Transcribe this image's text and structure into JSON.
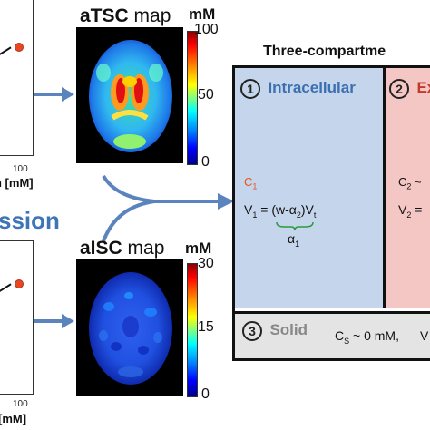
{
  "left_plots": {
    "top": {
      "tick_x": "100",
      "xlabel": "n [mM]"
    },
    "bottom": {
      "tick_x": "100",
      "xlabel": "[mM]"
    },
    "section_label": "ssion"
  },
  "atsc": {
    "title_bold": "aTSC",
    "title_rest": " map",
    "unit": "mM",
    "ticks": [
      "100",
      "50",
      "0"
    ]
  },
  "aisc": {
    "title_bold": "aISC",
    "title_rest": " map",
    "unit": "mM",
    "ticks": [
      "30",
      "15",
      "0"
    ]
  },
  "model": {
    "title": "Three-compartme",
    "intracellular": {
      "number": "1",
      "name": "Intracellular",
      "c_label": "C",
      "c_sub": "1",
      "eq_prefix": "V",
      "eq_sub": "1",
      "eq_body": " = (w-α",
      "eq_body_sub": "2",
      "eq_tail": ")V",
      "eq_tail_sub": "t",
      "alpha": "α",
      "alpha_sub": "1"
    },
    "extracellular": {
      "number": "2",
      "name": "Ex",
      "c_label": "C",
      "c_sub": "2",
      "c_tail": " ~",
      "eq_prefix": "V",
      "eq_sub": "2",
      "eq_tail": " ="
    },
    "solid": {
      "number": "3",
      "name": "Solid",
      "c_label": "C",
      "c_sub": "S",
      "c_tail": " ~ 0 mM,",
      "v_label": "V"
    }
  },
  "colors": {
    "arrow": "#5b84bf",
    "intracellular_bg": "#c5d6ec",
    "extracellular_bg": "#f4c7c5",
    "solid_bg": "#e4e4e4",
    "intracellular_text": "#3d6fb0",
    "extracellular_text": "#c0392b",
    "solid_text": "#888888",
    "c1_color": "#e8541c"
  }
}
